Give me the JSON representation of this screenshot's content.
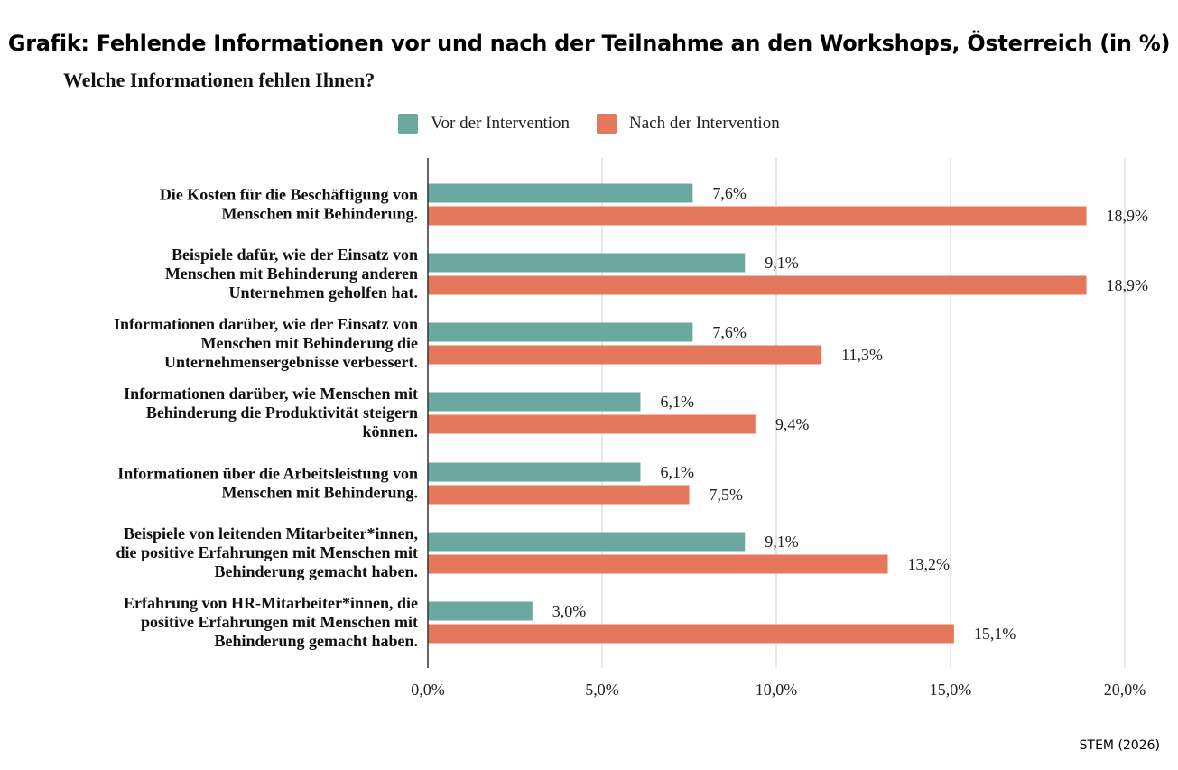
{
  "title": "Grafik: Fehlende Informationen vor und nach der Teilnahme an den Workshops, Österreich (in %)",
  "source": "STEM (2026)",
  "chart_data": {
    "type": "bar",
    "orientation": "horizontal",
    "subtitle": "Welche Informationen fehlen Ihnen?",
    "categories": [
      [
        "Die Kosten für die Beschäftigung von",
        "Menschen mit Behinderung."
      ],
      [
        "Beispiele dafür, wie der Einsatz von",
        "Menschen mit Behinderung anderen",
        "Unternehmen geholfen hat."
      ],
      [
        "Informationen darüber, wie der Einsatz von",
        "Menschen mit Behinderung die",
        "Unternehmensergebnisse verbessert."
      ],
      [
        "Informationen darüber, wie Menschen mit",
        "Behinderung die Produktivität steigern",
        "können."
      ],
      [
        "Informationen über die Arbeitsleistung von",
        "Menschen mit Behinderung."
      ],
      [
        "Beispiele von leitenden Mitarbeiter*innen,",
        "die positive Erfahrungen mit Menschen mit",
        "Behinderung gemacht haben."
      ],
      [
        "Erfahrung von HR-Mitarbeiter*innen, die",
        "positive Erfahrungen mit Menschen mit",
        "Behinderung gemacht haben."
      ]
    ],
    "series": [
      {
        "name": "Vor der Intervention",
        "color": "#6aa8a0",
        "values": [
          7.6,
          9.1,
          7.6,
          6.1,
          6.1,
          9.1,
          3.0
        ],
        "labels": [
          "7,6%",
          "9,1%",
          "7,6%",
          "6,1%",
          "6,1%",
          "9,1%",
          "3,0%"
        ]
      },
      {
        "name": "Nach der Intervention",
        "color": "#e5785c",
        "values": [
          18.9,
          18.9,
          11.3,
          9.4,
          7.5,
          13.2,
          15.1
        ],
        "labels": [
          "18,9%",
          "18,9%",
          "11,3%",
          "9,4%",
          "7,5%",
          "13,2%",
          "15,1%"
        ]
      }
    ],
    "xlim": [
      0,
      20
    ],
    "xticks": [
      0,
      5,
      10,
      15,
      20
    ],
    "xtick_labels": [
      "0,0%",
      "5,0%",
      "10,0%",
      "15,0%",
      "20,0%"
    ],
    "grid": true,
    "legend_position": "top"
  }
}
